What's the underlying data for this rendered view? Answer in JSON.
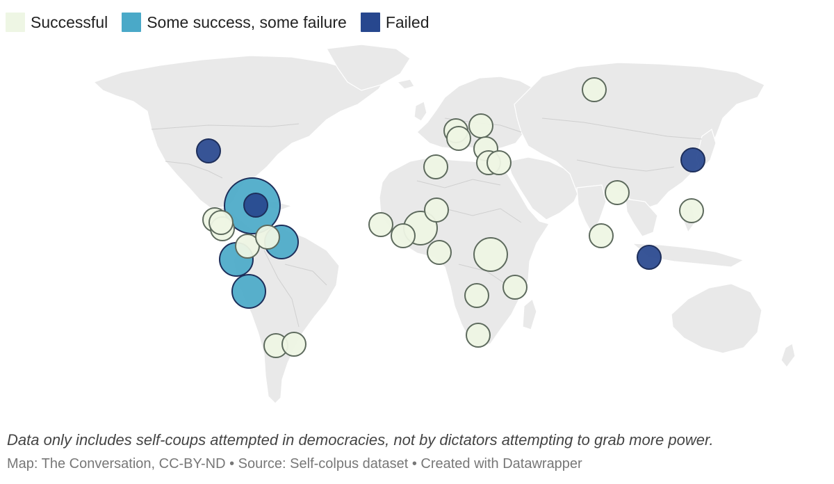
{
  "legend": [
    {
      "label": "Successful",
      "category": "successful"
    },
    {
      "label": "Some success, some failure",
      "category": "mixed"
    },
    {
      "label": "Failed",
      "category": "failed"
    }
  ],
  "colors": {
    "successful": "#eef6e4",
    "mixed": "#4aa9c8",
    "failed": "#27478e",
    "land": "#e9e9e9",
    "bubble_stroke": "#5d6a5d"
  },
  "points": [
    {
      "category": "successful",
      "size": "small"
    },
    {
      "category": "failed",
      "size": "small"
    },
    {
      "category": "mixed",
      "size": "large"
    },
    {
      "category": "failed",
      "size": "small"
    },
    {
      "category": "successful",
      "size": "small"
    },
    {
      "category": "successful",
      "size": "small"
    },
    {
      "category": "successful",
      "size": "small"
    },
    {
      "category": "mixed",
      "size": "medium"
    },
    {
      "category": "successful",
      "size": "small"
    },
    {
      "category": "successful",
      "size": "small"
    },
    {
      "category": "mixed",
      "size": "medium"
    },
    {
      "category": "mixed",
      "size": "medium"
    },
    {
      "category": "successful",
      "size": "small"
    },
    {
      "category": "successful",
      "size": "small"
    },
    {
      "category": "successful",
      "size": "small"
    },
    {
      "category": "successful",
      "size": "small"
    },
    {
      "category": "successful",
      "size": "medium"
    },
    {
      "category": "successful",
      "size": "small"
    },
    {
      "category": "successful",
      "size": "small"
    },
    {
      "category": "successful",
      "size": "small"
    },
    {
      "category": "successful",
      "size": "small"
    },
    {
      "category": "successful",
      "size": "small"
    },
    {
      "category": "successful",
      "size": "small"
    },
    {
      "category": "successful",
      "size": "small"
    },
    {
      "category": "successful",
      "size": "small"
    },
    {
      "category": "successful",
      "size": "small"
    },
    {
      "category": "successful",
      "size": "medium"
    },
    {
      "category": "successful",
      "size": "small"
    },
    {
      "category": "successful",
      "size": "small"
    },
    {
      "category": "successful",
      "size": "small"
    },
    {
      "category": "successful",
      "size": "small"
    },
    {
      "category": "successful",
      "size": "small"
    },
    {
      "category": "failed",
      "size": "small"
    },
    {
      "category": "successful",
      "size": "small"
    },
    {
      "category": "failed",
      "size": "small"
    }
  ],
  "note": "Data only includes self-coups attempted in democracies, not by dictators attempting to grab more power.",
  "credit": "Map: The Conversation, CC-BY-ND • Source: Self-colpus dataset • Created with Datawrapper"
}
